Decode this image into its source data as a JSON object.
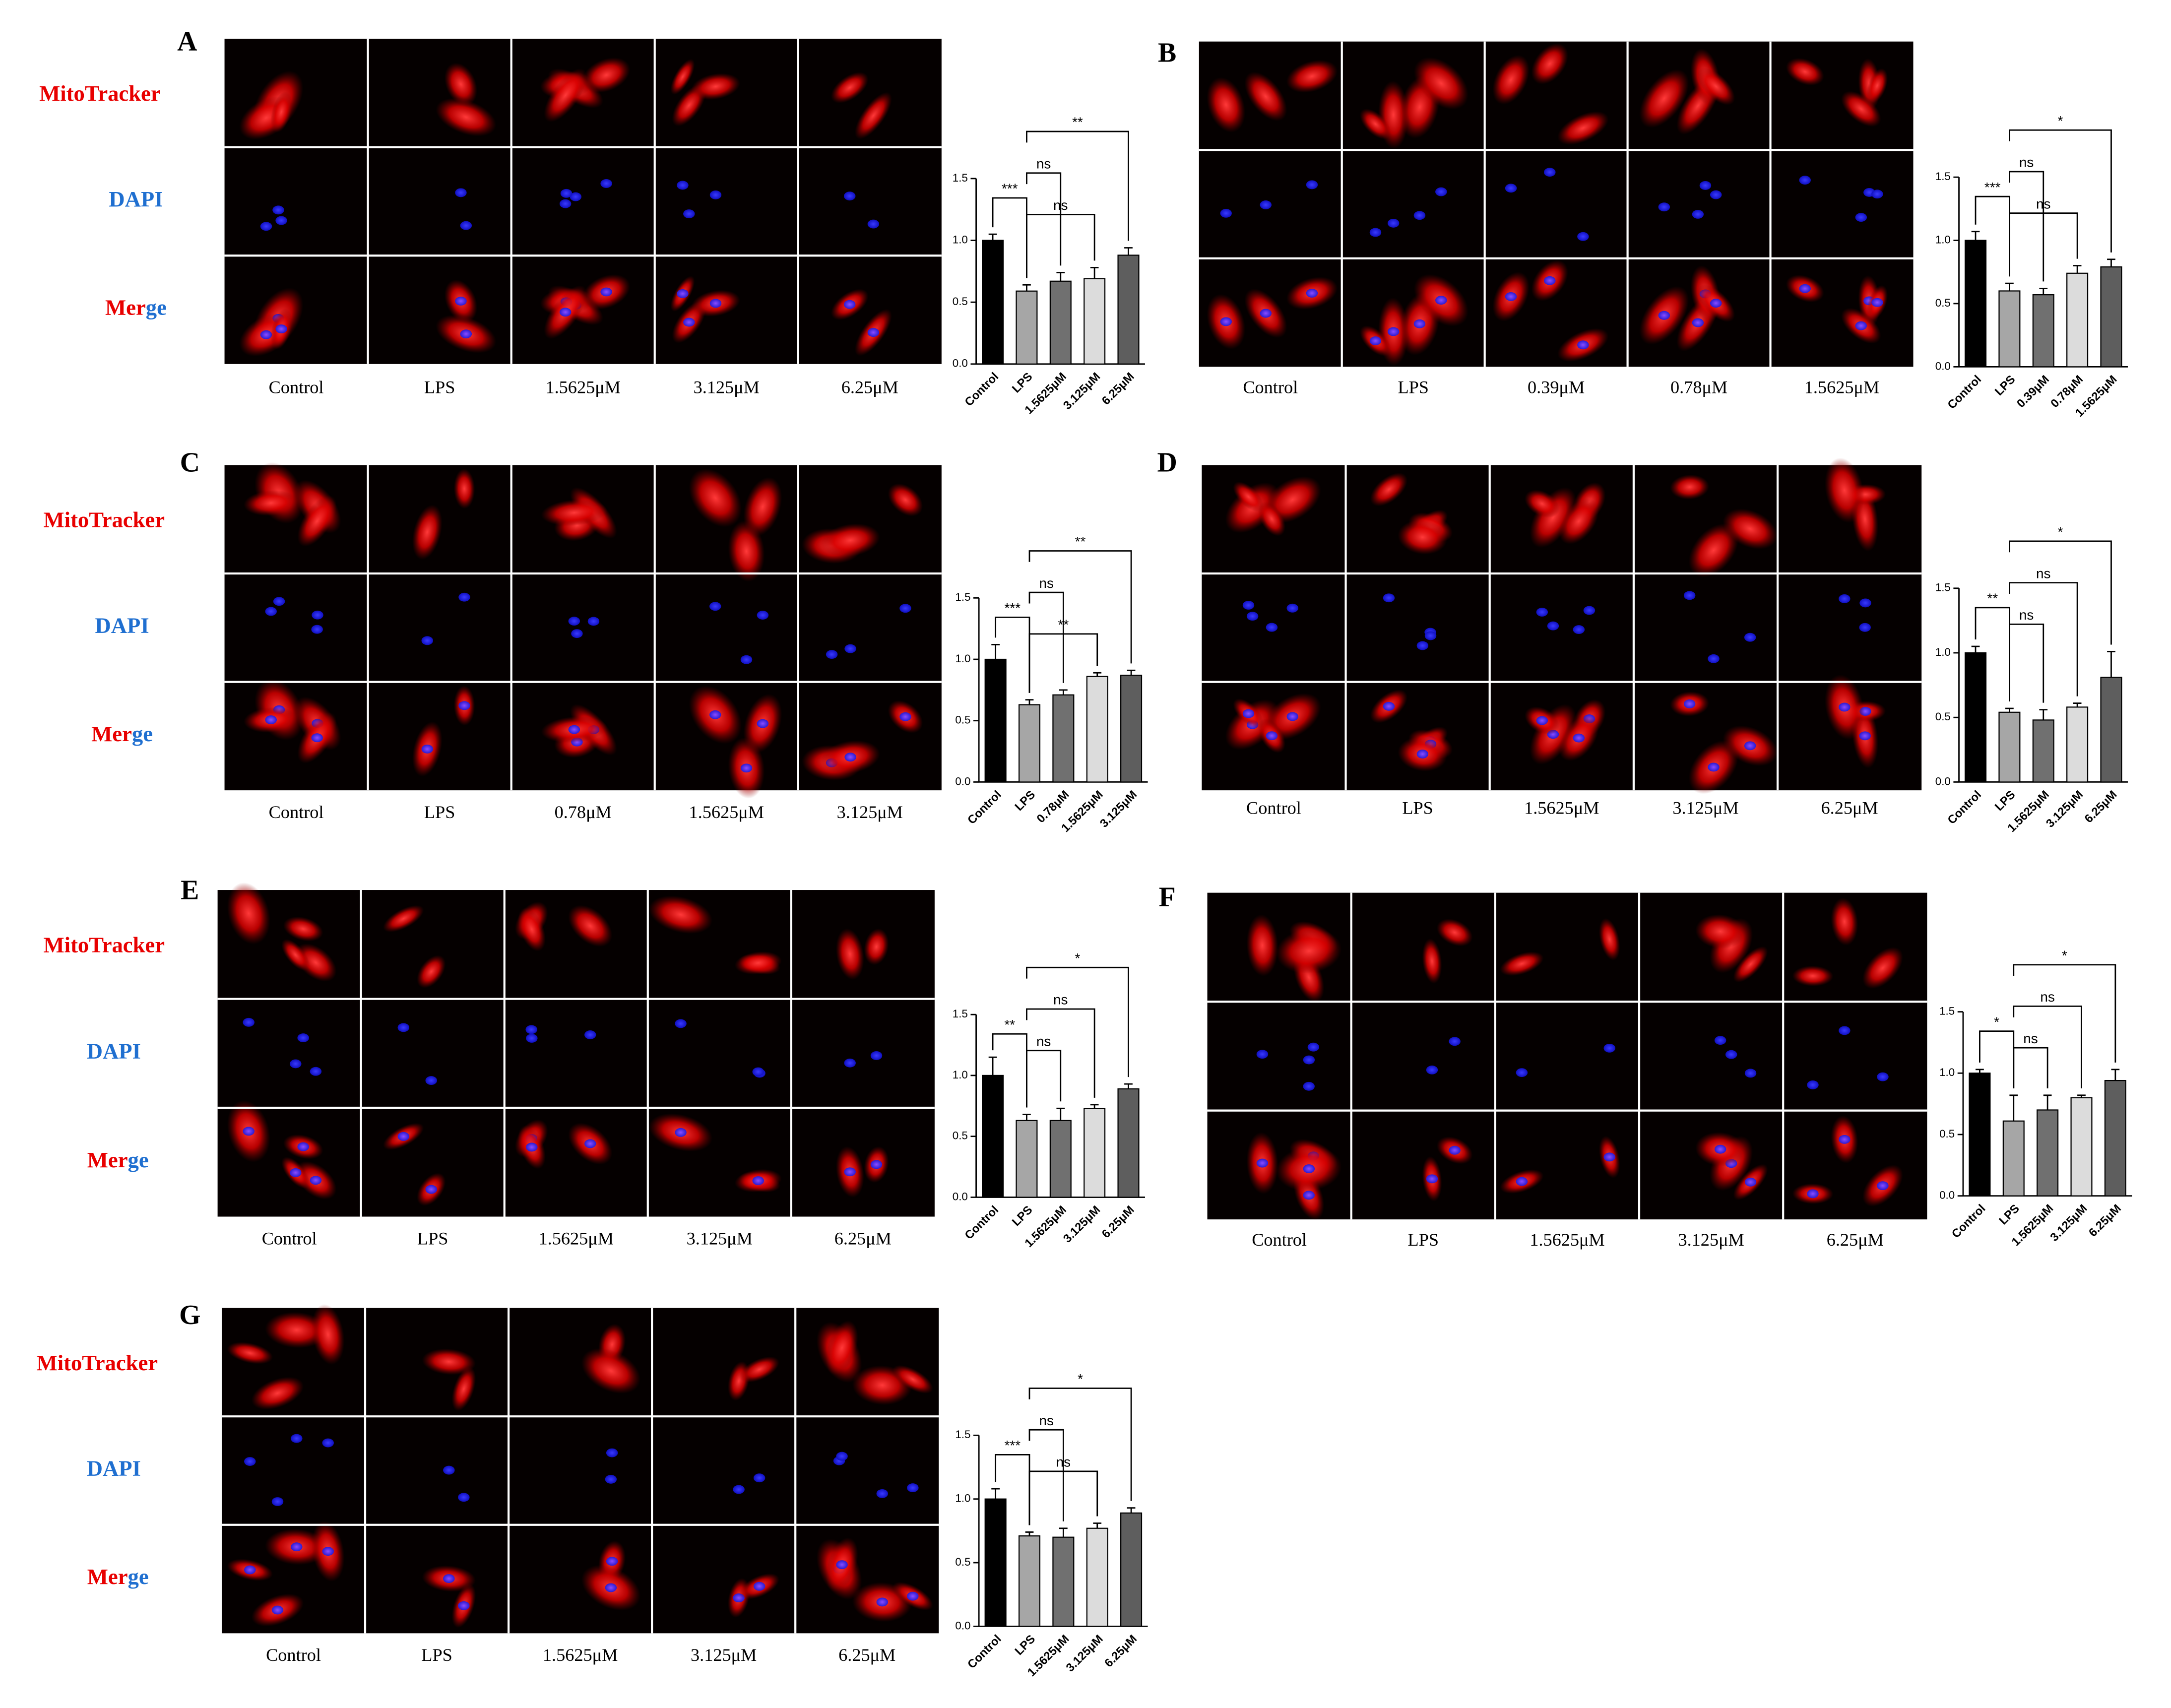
{
  "figure": {
    "panels": [
      {
        "label": "A",
        "row_labels": {
          "mitotracker": "MitoTracker",
          "dapi": "DAPI",
          "merge": [
            "Mer",
            "ge"
          ]
        },
        "conditions": [
          "Control",
          "LPS",
          "1.5625μM",
          "3.125μM",
          "6.25μM"
        ]
      },
      {
        "label": "B",
        "conditions": [
          "Control",
          "LPS",
          "0.39μM",
          "0.78μM",
          "1.5625μM"
        ]
      },
      {
        "label": "C",
        "row_labels": {
          "mitotracker": "MitoTracker",
          "dapi": "DAPI",
          "merge": [
            "Mer",
            "ge"
          ]
        },
        "conditions": [
          "Control",
          "LPS",
          "0.78μM",
          "1.5625μM",
          "3.125μM"
        ]
      },
      {
        "label": "D",
        "conditions": [
          "Control",
          "LPS",
          "1.5625μM",
          "3.125μM",
          "6.25μM"
        ]
      },
      {
        "label": "E",
        "row_labels": {
          "mitotracker": "MitoTracker",
          "dapi": "DAPI",
          "merge": [
            "Mer",
            "ge"
          ]
        },
        "conditions": [
          "Control",
          "LPS",
          "1.5625μM",
          "3.125μM",
          "6.25μM"
        ]
      },
      {
        "label": "F",
        "conditions": [
          "Control",
          "LPS",
          "1.5625μM",
          "3.125μM",
          "6.25μM"
        ]
      },
      {
        "label": "G",
        "row_labels": {
          "mitotracker": "MitoTracker",
          "dapi": "DAPI",
          "merge": [
            "Mer",
            "ge"
          ]
        },
        "conditions": [
          "Control",
          "LPS",
          "1.5625μM",
          "3.125μM",
          "6.25μM"
        ]
      }
    ]
  },
  "chart_data": [
    {
      "type": "bar",
      "categories": [
        "Control",
        "LPS",
        "1.5625μM",
        "3.125μM",
        "6.25μM"
      ],
      "values": [
        1.0,
        0.59,
        0.67,
        0.69,
        0.88
      ],
      "errors": [
        0.05,
        0.05,
        0.07,
        0.09,
        0.06
      ],
      "colors": [
        "#000000",
        "#a6a6a6",
        "#707070",
        "#dcdcdc",
        "#5e5e5e"
      ],
      "ylim": [
        0,
        1.5
      ],
      "yticks": [
        {
          "value": 0,
          "label": "0.0"
        },
        0.5,
        {
          "value": 1,
          "label": "1.0"
        },
        1.5
      ],
      "comparisons": [
        {
          "from": 1,
          "to": 3,
          "label": "ns"
        },
        {
          "from": 0,
          "to": 1,
          "label": "***"
        },
        {
          "from": 1,
          "to": 2,
          "label": "ns"
        },
        {
          "from": 1,
          "to": 4,
          "label": "**"
        }
      ]
    },
    {
      "type": "bar",
      "categories": [
        "Control",
        "LPS",
        "0.39μM",
        "0.78μM",
        "1.5625μM"
      ],
      "values": [
        1.0,
        0.6,
        0.57,
        0.74,
        0.79
      ],
      "errors": [
        0.07,
        0.06,
        0.05,
        0.06,
        0.06
      ],
      "colors": [
        "#000000",
        "#a6a6a6",
        "#707070",
        "#dcdcdc",
        "#5e5e5e"
      ],
      "ylim": [
        0,
        1.5
      ],
      "yticks": [
        {
          "value": 0,
          "label": "0.0"
        },
        0.5,
        {
          "value": 1,
          "label": "1.0"
        },
        1.5
      ],
      "comparisons": [
        {
          "from": 1,
          "to": 3,
          "label": "ns"
        },
        {
          "from": 0,
          "to": 1,
          "label": "***"
        },
        {
          "from": 1,
          "to": 2,
          "label": "ns"
        },
        {
          "from": 1,
          "to": 4,
          "label": "*"
        }
      ]
    },
    {
      "type": "bar",
      "categories": [
        "Control",
        "LPS",
        "0.78μM",
        "1.5625μM",
        "3.125μM"
      ],
      "values": [
        1.0,
        0.63,
        0.71,
        0.86,
        0.87
      ],
      "errors": [
        0.12,
        0.04,
        0.04,
        0.03,
        0.04
      ],
      "colors": [
        "#000000",
        "#a6a6a6",
        "#707070",
        "#dcdcdc",
        "#5e5e5e"
      ],
      "ylim": [
        0,
        1.5
      ],
      "yticks": [
        {
          "value": 0,
          "label": "0.0"
        },
        0.5,
        {
          "value": 1,
          "label": "1.0"
        },
        1.5
      ],
      "comparisons": [
        {
          "from": 1,
          "to": 3,
          "label": "**"
        },
        {
          "from": 0,
          "to": 1,
          "label": "***"
        },
        {
          "from": 1,
          "to": 2,
          "label": "ns"
        },
        {
          "from": 1,
          "to": 4,
          "label": "**"
        }
      ]
    },
    {
      "type": "bar",
      "categories": [
        "Control",
        "LPS",
        "1.5625μM",
        "3.125μM",
        "6.25μM"
      ],
      "values": [
        1.0,
        0.54,
        0.48,
        0.58,
        0.81
      ],
      "errors": [
        0.05,
        0.03,
        0.08,
        0.03,
        0.2
      ],
      "colors": [
        "#000000",
        "#a6a6a6",
        "#707070",
        "#dcdcdc",
        "#5e5e5e"
      ],
      "ylim": [
        0,
        1.5
      ],
      "yticks": [
        {
          "value": 0,
          "label": "0.0"
        },
        0.5,
        {
          "value": 1,
          "label": "1.0"
        },
        1.5
      ],
      "comparisons": [
        {
          "from": 1,
          "to": 2,
          "label": "ns"
        },
        {
          "from": 0,
          "to": 1,
          "label": "**"
        },
        {
          "from": 1,
          "to": 3,
          "label": "ns"
        },
        {
          "from": 1,
          "to": 4,
          "label": "*"
        }
      ]
    },
    {
      "type": "bar",
      "categories": [
        "Control",
        "LPS",
        "1.5625μM",
        "3.125μM",
        "6.25μM"
      ],
      "values": [
        1.0,
        0.63,
        0.63,
        0.73,
        0.89
      ],
      "errors": [
        0.15,
        0.05,
        0.1,
        0.03,
        0.04
      ],
      "colors": [
        "#000000",
        "#a6a6a6",
        "#707070",
        "#dcdcdc",
        "#5e5e5e"
      ],
      "ylim": [
        0,
        1.5
      ],
      "yticks": [
        {
          "value": 0,
          "label": "0.0"
        },
        0.5,
        {
          "value": 1,
          "label": "1.0"
        },
        1.5
      ],
      "comparisons": [
        {
          "from": 1,
          "to": 2,
          "label": "ns"
        },
        {
          "from": 0,
          "to": 1,
          "label": "**"
        },
        {
          "from": 1,
          "to": 3,
          "label": "ns"
        },
        {
          "from": 1,
          "to": 4,
          "label": "*"
        }
      ]
    },
    {
      "type": "bar",
      "categories": [
        "Control",
        "LPS",
        "1.5625μM",
        "3.125μM",
        "6.25μM"
      ],
      "values": [
        1.0,
        0.61,
        0.7,
        0.8,
        0.94
      ],
      "errors": [
        0.03,
        0.21,
        0.12,
        0.02,
        0.09
      ],
      "colors": [
        "#000000",
        "#a6a6a6",
        "#707070",
        "#dcdcdc",
        "#5e5e5e"
      ],
      "ylim": [
        0,
        1.5
      ],
      "yticks": [
        {
          "value": 0,
          "label": "0.0"
        },
        0.5,
        {
          "value": 1,
          "label": "1.0"
        },
        1.5
      ],
      "comparisons": [
        {
          "from": 1,
          "to": 2,
          "label": "ns"
        },
        {
          "from": 0,
          "to": 1,
          "label": "*"
        },
        {
          "from": 1,
          "to": 3,
          "label": "ns"
        },
        {
          "from": 1,
          "to": 4,
          "label": "*"
        }
      ]
    },
    {
      "type": "bar",
      "categories": [
        "Control",
        "LPS",
        "1.5625μM",
        "3.125μM",
        "6.25μM"
      ],
      "values": [
        1.0,
        0.71,
        0.7,
        0.77,
        0.89
      ],
      "errors": [
        0.08,
        0.03,
        0.07,
        0.04,
        0.04
      ],
      "colors": [
        "#000000",
        "#a6a6a6",
        "#707070",
        "#dcdcdc",
        "#5e5e5e"
      ],
      "ylim": [
        0,
        1.5
      ],
      "yticks": [
        {
          "value": 0,
          "label": "0.0"
        },
        0.5,
        {
          "value": 1,
          "label": "1.0"
        },
        1.5
      ],
      "comparisons": [
        {
          "from": 1,
          "to": 3,
          "label": "ns"
        },
        {
          "from": 0,
          "to": 1,
          "label": "***"
        },
        {
          "from": 1,
          "to": 2,
          "label": "ns"
        },
        {
          "from": 1,
          "to": 4,
          "label": "*"
        }
      ]
    }
  ]
}
